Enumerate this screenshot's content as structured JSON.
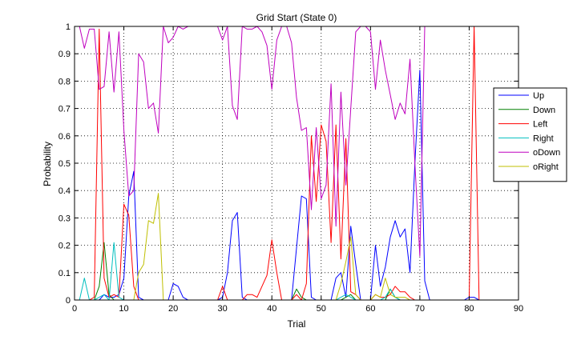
{
  "chart_data": {
    "type": "line",
    "title": "Grid Start (State 0)",
    "xlabel": "Trial",
    "ylabel": "Probability",
    "xlim": [
      0,
      90
    ],
    "ylim": [
      0,
      1
    ],
    "xticks": [
      0,
      10,
      20,
      30,
      40,
      50,
      60,
      70,
      80,
      90
    ],
    "yticks": [
      0,
      0.1,
      0.2,
      0.3,
      0.4,
      0.5,
      0.6,
      0.7,
      0.8,
      0.9,
      1
    ],
    "grid": true,
    "legend_position": "right",
    "series": [
      {
        "name": "Up",
        "color": "#0000ff",
        "x": [
          1,
          2,
          3,
          4,
          5,
          6,
          7,
          8,
          9,
          10,
          11,
          12,
          13,
          14,
          15,
          16,
          17,
          18,
          19,
          20,
          21,
          22,
          23,
          24,
          25,
          26,
          27,
          28,
          29,
          30,
          31,
          32,
          33,
          34,
          35,
          36,
          37,
          38,
          39,
          40,
          41,
          42,
          43,
          44,
          45,
          46,
          47,
          48,
          49,
          50,
          51,
          52,
          53,
          54,
          55,
          56,
          57,
          58,
          59,
          60,
          61,
          62,
          63,
          64,
          65,
          66,
          67,
          68,
          69,
          70,
          71,
          72,
          73,
          74,
          75,
          76,
          77,
          78,
          79,
          80,
          81,
          82,
          83
        ],
        "y": [
          0,
          0,
          0,
          0,
          0,
          0.02,
          0.01,
          0.01,
          0.02,
          0.08,
          0.38,
          0.47,
          0.01,
          0,
          0,
          0,
          0,
          0,
          0,
          0.06,
          0.05,
          0.01,
          0,
          0,
          0,
          0,
          0,
          0,
          0,
          0.01,
          0.1,
          0.29,
          0.32,
          0.01,
          0,
          0,
          0,
          0,
          0,
          0,
          0,
          0,
          0,
          0,
          0.19,
          0.38,
          0.37,
          0.01,
          0,
          0,
          0,
          0,
          0.08,
          0.1,
          0.01,
          0.27,
          0.13,
          0,
          0,
          0,
          0.2,
          0.05,
          0.12,
          0.23,
          0.29,
          0.23,
          0.26,
          0.1,
          0.5,
          0.84,
          0.07,
          0,
          0,
          0,
          0,
          0,
          0,
          0,
          0,
          0.01,
          0.01,
          0,
          0
        ]
      },
      {
        "name": "Down",
        "color": "#008000",
        "x": [
          1,
          2,
          3,
          4,
          5,
          6,
          7,
          8,
          9,
          10,
          11,
          12,
          13,
          14,
          15,
          16,
          17,
          18,
          19,
          20,
          21,
          22,
          23,
          24,
          25,
          26,
          27,
          28,
          29,
          30,
          31,
          32,
          33,
          34,
          35,
          36,
          37,
          38,
          39,
          40,
          41,
          42,
          43,
          44,
          45,
          46,
          47,
          48,
          49,
          50,
          51,
          52,
          53,
          54,
          55,
          56,
          57,
          58,
          59,
          60,
          61,
          62,
          63,
          64,
          65,
          66,
          67,
          68,
          69,
          70,
          71,
          72,
          73,
          74,
          75,
          76,
          77,
          78,
          79,
          80,
          81,
          82,
          83
        ],
        "y": [
          0,
          0,
          0,
          0,
          0.05,
          0.21,
          0.02,
          0,
          0,
          0,
          0,
          0,
          0,
          0,
          0,
          0,
          0,
          0,
          0,
          0,
          0,
          0,
          0,
          0,
          0,
          0,
          0,
          0,
          0,
          0,
          0,
          0,
          0,
          0,
          0,
          0,
          0,
          0,
          0,
          0,
          0,
          0,
          0,
          0,
          0.04,
          0.01,
          0,
          0,
          0,
          0,
          0,
          0,
          0,
          0,
          0.01,
          0.02,
          0,
          0,
          0,
          0,
          0,
          0,
          0,
          0.04,
          0.01,
          0,
          0,
          0,
          0,
          0,
          0,
          0,
          0,
          0,
          0,
          0,
          0,
          0,
          0,
          0,
          0,
          0,
          0
        ]
      },
      {
        "name": "Left",
        "color": "#ff0000",
        "x": [
          1,
          2,
          3,
          4,
          5,
          6,
          7,
          8,
          9,
          10,
          11,
          12,
          13,
          14,
          15,
          16,
          17,
          18,
          19,
          20,
          21,
          22,
          23,
          24,
          25,
          26,
          27,
          28,
          29,
          30,
          31,
          32,
          33,
          34,
          35,
          36,
          37,
          38,
          39,
          40,
          41,
          42,
          43,
          44,
          45,
          46,
          47,
          48,
          49,
          50,
          51,
          52,
          53,
          54,
          55,
          56,
          57,
          58,
          59,
          60,
          61,
          62,
          63,
          64,
          65,
          66,
          67,
          68,
          69,
          70,
          71,
          72,
          73,
          74,
          75,
          76,
          77,
          78,
          79,
          80,
          81,
          82,
          83
        ],
        "y": [
          0,
          0,
          0,
          0.01,
          0.99,
          0.08,
          0.01,
          0.02,
          0.01,
          0.35,
          0.31,
          0.05,
          0,
          0,
          0,
          0,
          0,
          0,
          0,
          0,
          0,
          0,
          0,
          0,
          0,
          0,
          0,
          0,
          0,
          0.05,
          0,
          0,
          0,
          0,
          0.02,
          0.02,
          0.01,
          0.05,
          0.09,
          0.22,
          0.1,
          0,
          0,
          0,
          0.02,
          0,
          0.06,
          0.6,
          0.36,
          0.64,
          0.58,
          0.21,
          0.64,
          0.15,
          0.59,
          0.03,
          0.02,
          0,
          0,
          0,
          0.02,
          0.01,
          0.01,
          0.02,
          0.05,
          0.03,
          0.03,
          0.01,
          0,
          0,
          0,
          0,
          0,
          0,
          0,
          0,
          0,
          0,
          0,
          0,
          1,
          0,
          0
        ]
      },
      {
        "name": "Right",
        "color": "#00bfbf",
        "x": [
          1,
          2,
          3,
          4,
          5,
          6,
          7,
          8,
          9,
          10,
          11,
          12,
          13,
          14,
          15,
          16,
          17,
          18,
          19,
          20,
          21,
          22,
          23,
          24,
          25,
          26,
          27,
          28,
          29,
          30,
          31,
          32,
          33,
          34,
          35,
          36,
          37,
          38,
          39,
          40,
          41,
          42,
          43,
          44,
          45,
          46,
          47,
          48,
          49,
          50,
          51,
          52,
          53,
          54,
          55,
          56,
          57,
          58,
          59,
          60,
          61,
          62,
          63,
          64,
          65,
          66,
          67,
          68,
          69,
          70,
          71,
          72,
          73,
          74,
          75,
          76,
          77,
          78,
          79,
          80,
          81,
          82,
          83
        ],
        "y": [
          0,
          0.08,
          0,
          0,
          0.01,
          0.02,
          0,
          0.21,
          0.01,
          0,
          0,
          0,
          0,
          0,
          0,
          0,
          0,
          0,
          0,
          0,
          0,
          0,
          0,
          0,
          0,
          0,
          0,
          0,
          0,
          0,
          0,
          0,
          0,
          0,
          0,
          0,
          0,
          0,
          0,
          0,
          0,
          0,
          0,
          0,
          0,
          0,
          0,
          0,
          0,
          0,
          0,
          0,
          0,
          0.01,
          0.02,
          0.01,
          0,
          0,
          0,
          0,
          0,
          0,
          0.01,
          0.04,
          0.01,
          0,
          0,
          0,
          0,
          0,
          0,
          0,
          0,
          0,
          0,
          0,
          0,
          0,
          0,
          0,
          0,
          0,
          0
        ]
      },
      {
        "name": "oDown",
        "color": "#bf00bf",
        "x": [
          1,
          2,
          3,
          4,
          5,
          6,
          7,
          8,
          9,
          10,
          11,
          12,
          13,
          14,
          15,
          16,
          17,
          18,
          19,
          20,
          21,
          22,
          23,
          24,
          25,
          26,
          27,
          28,
          29,
          30,
          31,
          32,
          33,
          34,
          35,
          36,
          37,
          38,
          39,
          40,
          41,
          42,
          43,
          44,
          45,
          46,
          47,
          48,
          49,
          50,
          51,
          52,
          53,
          54,
          55,
          56,
          57,
          58,
          59,
          60,
          61,
          62,
          63,
          64,
          65,
          66,
          67,
          68,
          69,
          70,
          71,
          72,
          73,
          74,
          75,
          76,
          77,
          78,
          79,
          80,
          81,
          82,
          83
        ],
        "y": [
          1,
          0.92,
          0.99,
          0.99,
          0.77,
          0.78,
          0.98,
          0.76,
          0.98,
          0.62,
          0.38,
          0.4,
          0.9,
          0.87,
          0.7,
          0.72,
          0.61,
          1,
          0.94,
          0.96,
          1,
          0.99,
          1,
          1,
          1,
          1,
          1,
          1,
          1,
          0.95,
          1,
          0.71,
          0.66,
          1,
          0.99,
          0.99,
          1,
          0.98,
          0.93,
          0.77,
          0.95,
          1,
          1,
          0.94,
          0.74,
          0.62,
          0.63,
          0.33,
          0.63,
          0.37,
          0.42,
          0.79,
          0.27,
          0.76,
          0.42,
          0.7,
          0.98,
          1,
          1,
          0.98,
          0.77,
          0.95,
          0.84,
          0.75,
          0.66,
          0.72,
          0.68,
          0.88,
          0.5,
          0.16,
          1,
          1,
          1,
          1,
          1,
          1,
          1,
          1,
          1,
          1,
          1,
          1,
          1
        ]
      },
      {
        "name": "oRight",
        "color": "#bfbf00",
        "x": [
          1,
          2,
          3,
          4,
          5,
          6,
          7,
          8,
          9,
          10,
          11,
          12,
          13,
          14,
          15,
          16,
          17,
          18,
          19,
          20,
          21,
          22,
          23,
          24,
          25,
          26,
          27,
          28,
          29,
          30,
          31,
          32,
          33,
          34,
          35,
          36,
          37,
          38,
          39,
          40,
          41,
          42,
          43,
          44,
          45,
          46,
          47,
          48,
          49,
          50,
          51,
          52,
          53,
          54,
          55,
          56,
          57,
          58,
          59,
          60,
          61,
          62,
          63,
          64,
          65,
          66,
          67,
          68,
          69,
          70,
          71,
          72,
          73,
          74,
          75,
          76,
          77,
          78,
          79,
          80,
          81,
          82,
          83
        ],
        "y": [
          0,
          0,
          0,
          0,
          0,
          0,
          0,
          0,
          0,
          0,
          0,
          0,
          0.1,
          0.13,
          0.29,
          0.28,
          0.39,
          0,
          0,
          0,
          0,
          0,
          0,
          0,
          0,
          0,
          0,
          0,
          0,
          0,
          0,
          0,
          0,
          0,
          0,
          0,
          0,
          0,
          0,
          0,
          0,
          0,
          0,
          0,
          0,
          0,
          0,
          0,
          0,
          0,
          0,
          0,
          0,
          0.06,
          0.14,
          0.23,
          0.02,
          0,
          0,
          0,
          0.02,
          0.01,
          0.08,
          0.02,
          0.01,
          0.01,
          0.01,
          0,
          0,
          0,
          0,
          0,
          0,
          0,
          0,
          0,
          0,
          0,
          0,
          0,
          0,
          0,
          0
        ]
      }
    ]
  }
}
